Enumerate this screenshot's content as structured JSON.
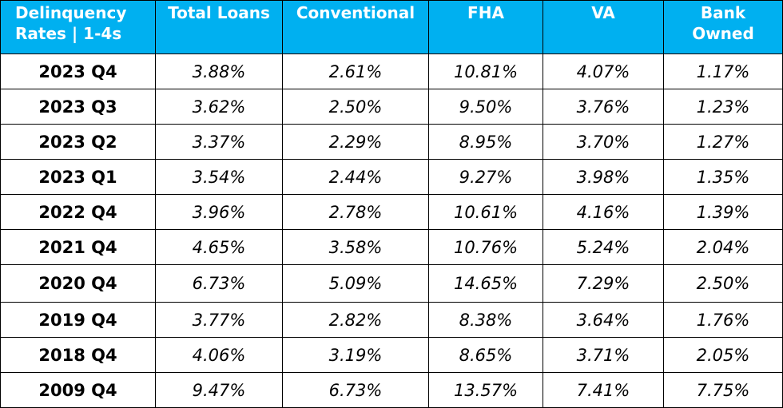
{
  "colors": {
    "header_bg": "#00b0f0",
    "header_text": "#ffffff",
    "grid": "#000000"
  },
  "chart_data": {
    "type": "table",
    "columns": [
      {
        "lines": [
          "Delinquency",
          "Rates | 1-4s"
        ]
      },
      {
        "lines": [
          "Total Loans"
        ]
      },
      {
        "lines": [
          "Conventional"
        ]
      },
      {
        "lines": [
          "FHA"
        ]
      },
      {
        "lines": [
          "VA"
        ]
      },
      {
        "lines": [
          "Bank",
          "Owned"
        ]
      }
    ],
    "rows": [
      {
        "period": "2023 Q4",
        "values": [
          "3.88%",
          "2.61%",
          "10.81%",
          "4.07%",
          "1.17%"
        ]
      },
      {
        "period": "2023 Q3",
        "values": [
          "3.62%",
          "2.50%",
          "9.50%",
          "3.76%",
          "1.23%"
        ]
      },
      {
        "period": "2023 Q2",
        "values": [
          "3.37%",
          "2.29%",
          "8.95%",
          "3.70%",
          "1.27%"
        ]
      },
      {
        "period": "2023 Q1",
        "values": [
          "3.54%",
          "2.44%",
          "9.27%",
          "3.98%",
          "1.35%"
        ]
      },
      {
        "period": "2022 Q4",
        "values": [
          "3.96%",
          "2.78%",
          "10.61%",
          "4.16%",
          "1.39%"
        ]
      },
      {
        "period": "2021 Q4",
        "values": [
          "4.65%",
          "3.58%",
          "10.76%",
          "5.24%",
          "2.04%"
        ]
      },
      {
        "period": "2020 Q4",
        "values": [
          "6.73%",
          "5.09%",
          "14.65%",
          "7.29%",
          "2.50%"
        ]
      },
      {
        "period": "2019 Q4",
        "values": [
          "3.77%",
          "2.82%",
          "8.38%",
          "3.64%",
          "1.76%"
        ]
      },
      {
        "period": "2018 Q4",
        "values": [
          "4.06%",
          "3.19%",
          "8.65%",
          "3.71%",
          "2.05%"
        ]
      },
      {
        "period": "2009 Q4",
        "values": [
          "9.47%",
          "6.73%",
          "13.57%",
          "7.41%",
          "7.75%"
        ]
      }
    ]
  }
}
